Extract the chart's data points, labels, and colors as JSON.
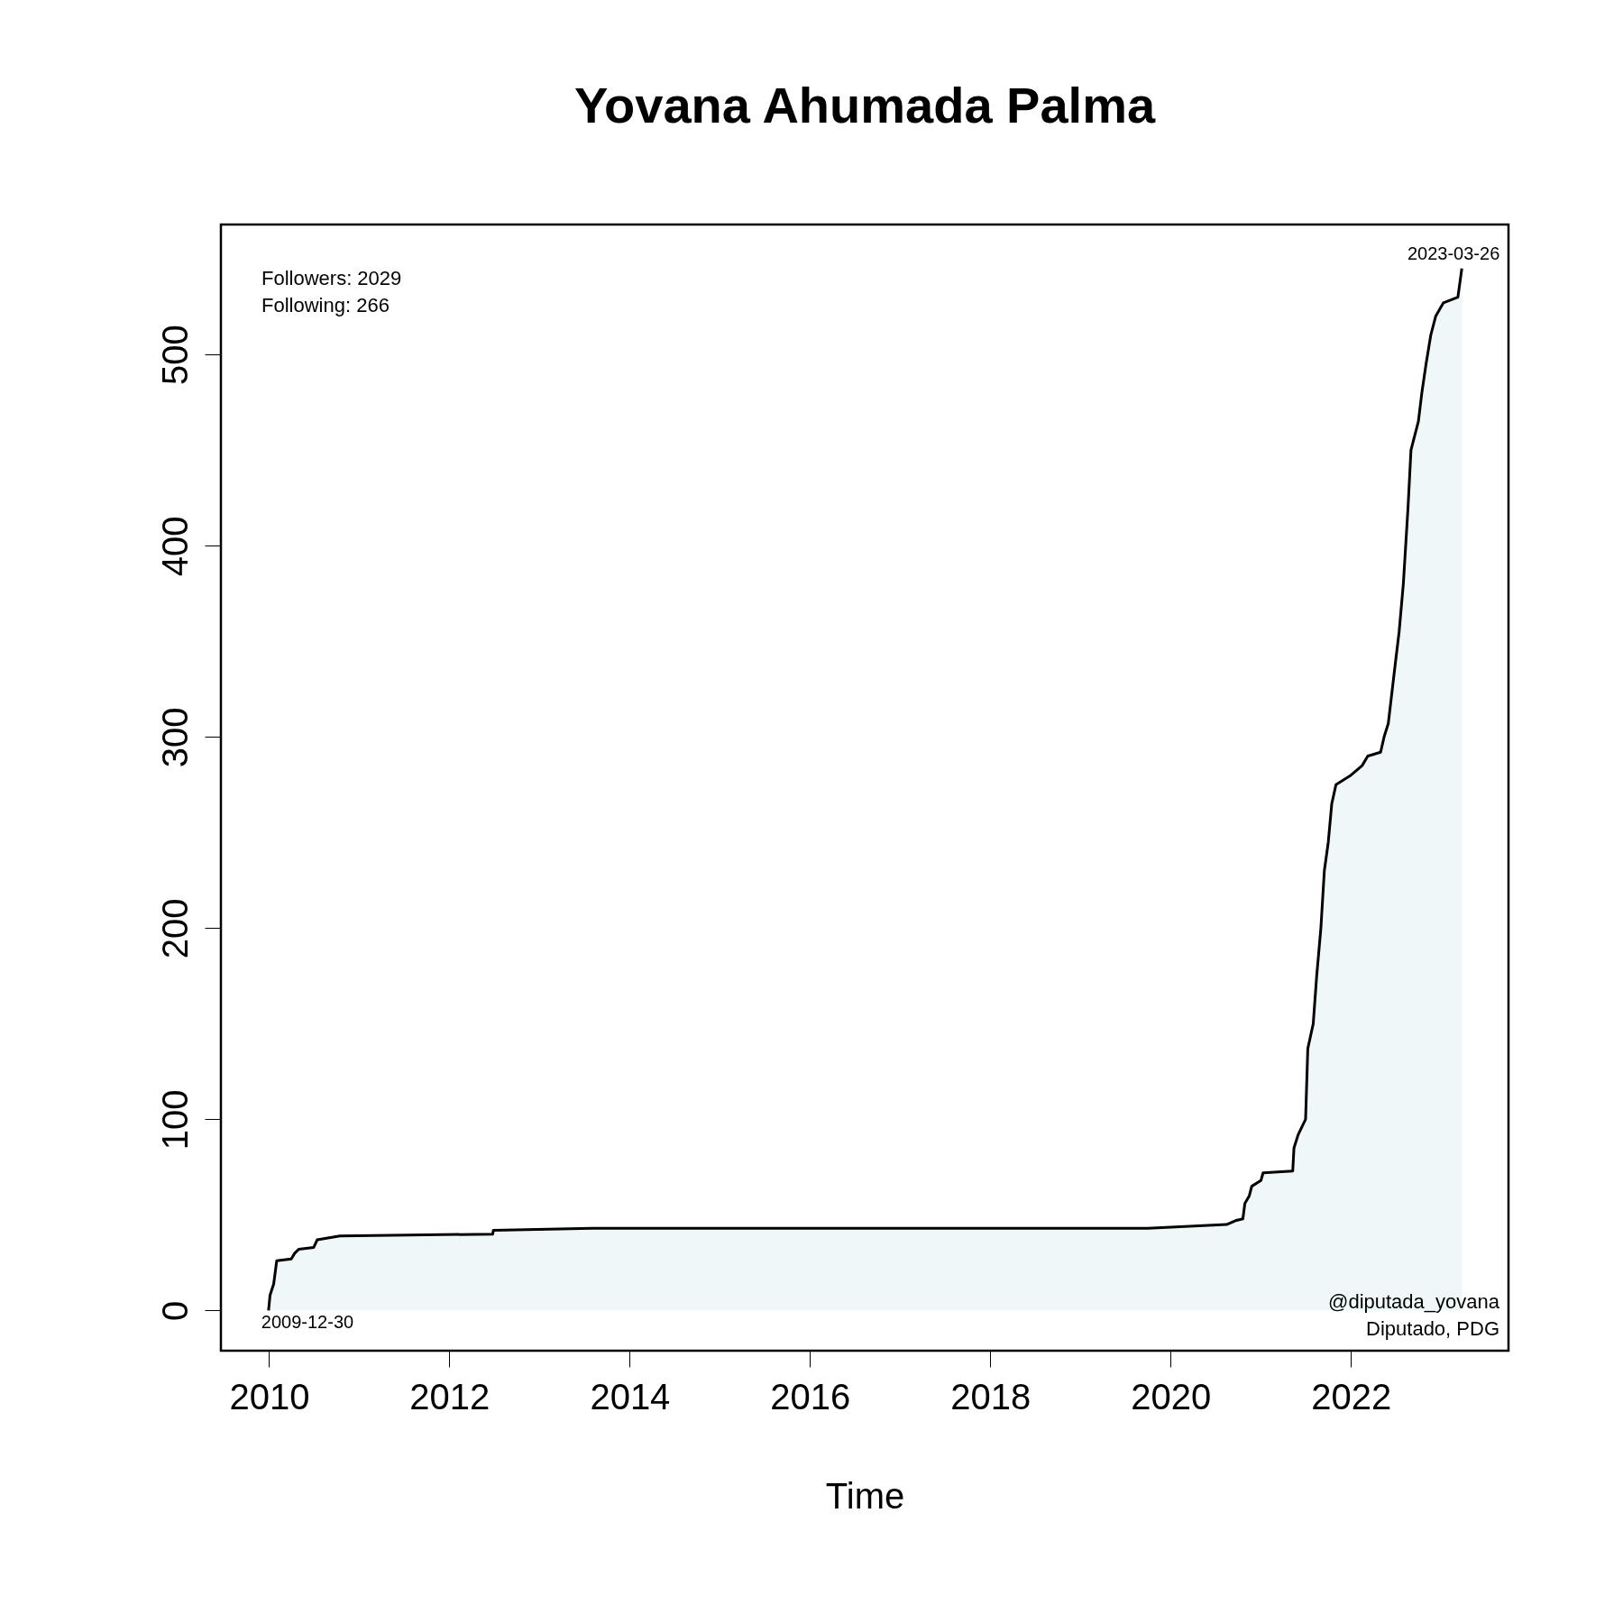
{
  "chart_data": {
    "type": "area",
    "title": "Yovana Ahumada Palma",
    "xlabel": "Time",
    "x": [
      "2009-12-30",
      "2010-01-05",
      "2010-01-20",
      "2010-02-01",
      "2010-04-01",
      "2010-04-15",
      "2010-05-01",
      "2010-07-01",
      "2010-07-15",
      "2010-10-15",
      "2012-06-25",
      "2012-06-28",
      "2013-08-01",
      "2019-10-01",
      "2020-08-15",
      "2020-09-20",
      "2020-10-20",
      "2020-10-28",
      "2020-11-15",
      "2020-11-25",
      "2021-01-01",
      "2021-01-10",
      "2021-05-10",
      "2021-05-15",
      "2021-06-01",
      "2021-07-01",
      "2021-07-10",
      "2021-08-01",
      "2021-08-15",
      "2021-09-01",
      "2021-09-15",
      "2021-10-01",
      "2021-10-15",
      "2021-11-01",
      "2022-01-01",
      "2022-02-15",
      "2022-03-10",
      "2022-05-01",
      "2022-05-15",
      "2022-06-01",
      "2022-07-01",
      "2022-07-15",
      "2022-08-01",
      "2022-08-20",
      "2022-09-01",
      "2022-10-01",
      "2022-10-15",
      "2022-11-01",
      "2022-11-20",
      "2022-12-10",
      "2023-01-10",
      "2023-03-10",
      "2023-03-26"
    ],
    "series": [
      {
        "color": "#e8f3f6",
        "values": [
          0,
          8,
          14,
          26,
          27,
          30,
          32,
          33,
          37,
          39,
          40,
          42,
          43,
          43,
          45,
          47,
          48,
          56,
          60,
          65,
          68,
          72,
          73,
          85,
          92,
          100,
          137,
          150,
          175,
          200,
          230,
          245,
          265,
          275,
          280,
          285,
          290,
          292,
          300,
          307,
          340,
          355,
          380,
          420,
          450,
          465,
          480,
          495,
          510,
          520,
          527,
          530,
          545
        ]
      }
    ],
    "xlim": [
      "2009-06-20",
      "2023-10-01"
    ],
    "xticks": [
      {
        "value": "2010-01-01",
        "label": "2010"
      },
      {
        "value": "2012-01-01",
        "label": "2012"
      },
      {
        "value": "2014-01-01",
        "label": "2014"
      },
      {
        "value": "2016-01-01",
        "label": "2016"
      },
      {
        "value": "2018-01-01",
        "label": "2018"
      },
      {
        "value": "2020-01-01",
        "label": "2020"
      },
      {
        "value": "2022-01-01",
        "label": "2022"
      }
    ],
    "ylim": [
      -21,
      568
    ],
    "yticks": [
      0,
      100,
      200,
      300,
      400,
      500
    ],
    "annotations": [
      {
        "text": "2009-12-30",
        "x": "2009-12-30",
        "y": 0
      },
      {
        "text": "2023-03-26",
        "x": "2023-03-26",
        "y": 545
      },
      "Followers: 2029",
      "Following: 266",
      "@diputada_yovana",
      "Diputado, PDG"
    ],
    "grid": false,
    "legend": false,
    "marker": "none",
    "line_style": "solid"
  }
}
